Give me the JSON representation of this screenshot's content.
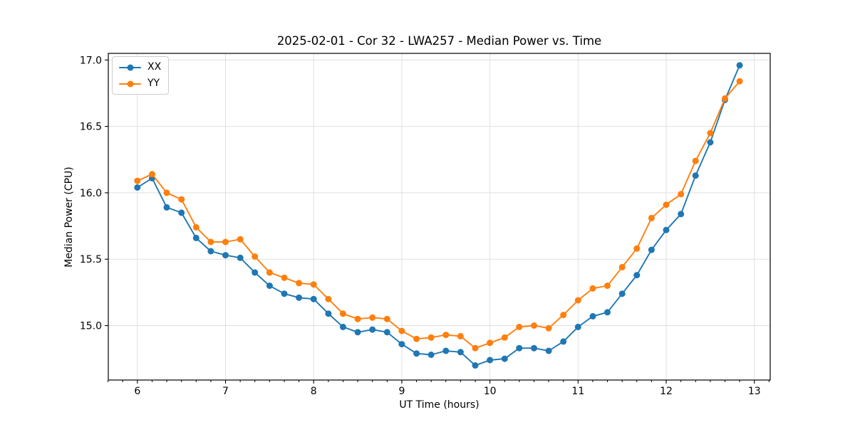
{
  "title": "2025-02-01 - Cor 32 - LWA257 - Median Power vs. Time",
  "chart_data": {
    "type": "line",
    "title": "2025-02-01 - Cor 32 - LWA257 - Median Power vs. Time",
    "xlabel": "UT Time (hours)",
    "ylabel": "Median Power (CPU)",
    "xlim": [
      5.67,
      13.18
    ],
    "ylim": [
      14.59,
      17.05
    ],
    "x_ticks": [
      6,
      7,
      8,
      9,
      10,
      11,
      12,
      13
    ],
    "x_tick_labels": [
      "6",
      "7",
      "8",
      "9",
      "10",
      "11",
      "12",
      "13"
    ],
    "y_ticks": [
      15.0,
      15.5,
      16.0,
      16.5,
      17.0
    ],
    "y_tick_labels": [
      "15.0",
      "15.5",
      "16.0",
      "16.5",
      "17.0"
    ],
    "x_minor_tick_step": 0.16667,
    "grid": true,
    "legend_position": "upper left",
    "marker": "circle",
    "x": [
      6.0,
      6.167,
      6.333,
      6.5,
      6.667,
      6.833,
      7.0,
      7.167,
      7.333,
      7.5,
      7.667,
      7.833,
      8.0,
      8.167,
      8.333,
      8.5,
      8.667,
      8.833,
      9.0,
      9.167,
      9.333,
      9.5,
      9.667,
      9.833,
      10.0,
      10.167,
      10.333,
      10.5,
      10.667,
      10.833,
      11.0,
      11.167,
      11.333,
      11.5,
      11.667,
      11.833,
      12.0,
      12.167,
      12.333,
      12.5,
      12.667,
      12.833
    ],
    "series": [
      {
        "name": "XX",
        "color": "#1f77b4",
        "values": [
          16.04,
          16.11,
          15.89,
          15.85,
          15.66,
          15.56,
          15.53,
          15.51,
          15.4,
          15.3,
          15.24,
          15.21,
          15.2,
          15.09,
          14.99,
          14.95,
          14.97,
          14.95,
          14.86,
          14.79,
          14.78,
          14.81,
          14.8,
          14.7,
          14.74,
          14.75,
          14.83,
          14.83,
          14.81,
          14.88,
          14.99,
          15.07,
          15.1,
          15.24,
          15.38,
          15.57,
          15.72,
          15.84,
          16.13,
          16.38,
          16.7,
          16.96
        ]
      },
      {
        "name": "YY",
        "color": "#ff7f0e",
        "values": [
          16.09,
          16.14,
          16.0,
          15.95,
          15.74,
          15.63,
          15.63,
          15.65,
          15.52,
          15.4,
          15.36,
          15.32,
          15.31,
          15.2,
          15.09,
          15.05,
          15.06,
          15.05,
          14.96,
          14.9,
          14.91,
          14.93,
          14.92,
          14.83,
          14.87,
          14.91,
          14.99,
          15.0,
          14.98,
          15.08,
          15.19,
          15.28,
          15.3,
          15.44,
          15.58,
          15.81,
          15.91,
          15.99,
          16.24,
          16.45,
          16.71,
          16.84
        ]
      }
    ],
    "colors": {
      "grid": "#e0e0e0",
      "spine": "#000000",
      "tick": "#000000",
      "text": "#000000",
      "background": "#ffffff"
    }
  }
}
